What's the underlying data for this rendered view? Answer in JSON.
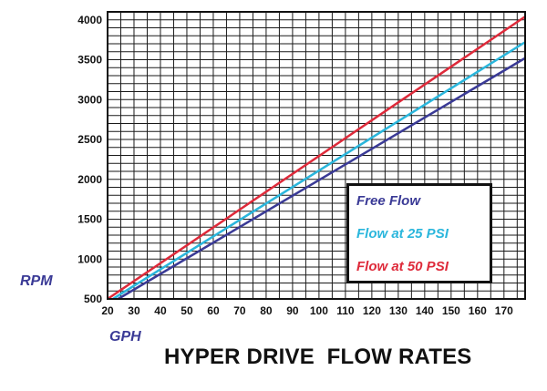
{
  "chart_data": {
    "type": "line",
    "title": "HYPER DRIVE  FLOW RATES",
    "xlabel": "GPH",
    "ylabel": "RPM",
    "xlim": [
      20,
      178
    ],
    "ylim": [
      500,
      4100
    ],
    "x_ticks": [
      20,
      30,
      40,
      50,
      60,
      70,
      80,
      90,
      100,
      110,
      120,
      130,
      140,
      150,
      160,
      170
    ],
    "y_ticks": [
      500,
      1000,
      1500,
      2000,
      2500,
      3000,
      3500,
      4000
    ],
    "grid": true,
    "legend_position": "lower-right",
    "series": [
      {
        "name": "Free Flow",
        "color": "#3a3a96",
        "x": [
          24,
          178
        ],
        "y": [
          500,
          3520
        ]
      },
      {
        "name": "Flow at 25 PSI",
        "color": "#2ab6dc",
        "x": [
          22,
          178
        ],
        "y": [
          500,
          3720
        ]
      },
      {
        "name": "Flow at 50 PSI",
        "color": "#de2a3a",
        "x": [
          20,
          178
        ],
        "y": [
          500,
          4040
        ]
      }
    ]
  }
}
